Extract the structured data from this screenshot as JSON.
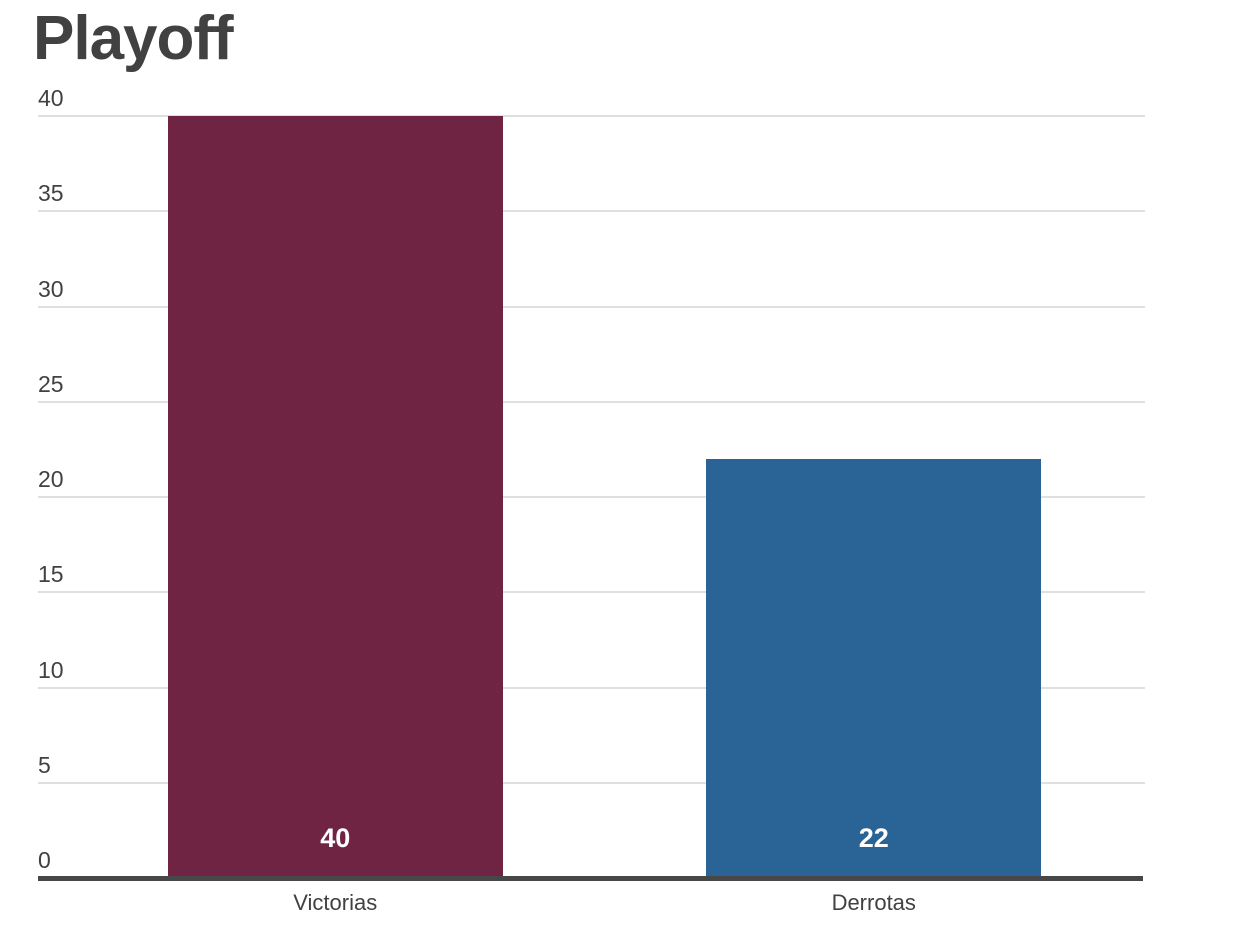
{
  "chart_data": {
    "type": "bar",
    "title": "Playoff",
    "categories": [
      "Victorias",
      "Derrotas"
    ],
    "values": [
      40,
      22
    ],
    "value_labels": [
      "40",
      "22"
    ],
    "bar_colors": [
      "#6E2442",
      "#2A6496"
    ],
    "yticks": [
      0,
      5,
      10,
      15,
      20,
      25,
      30,
      35,
      40
    ],
    "ylim": [
      0,
      40
    ],
    "xlabel": "",
    "ylabel": "",
    "grid": true,
    "legend": false,
    "colors": {
      "title_text": "#414141",
      "tick_text": "#414141",
      "category_text": "#414141",
      "value_text": "#FFFFFF",
      "gridline": "#E0E0E0",
      "axis_line": "#474747",
      "background": "#FFFFFF"
    }
  }
}
